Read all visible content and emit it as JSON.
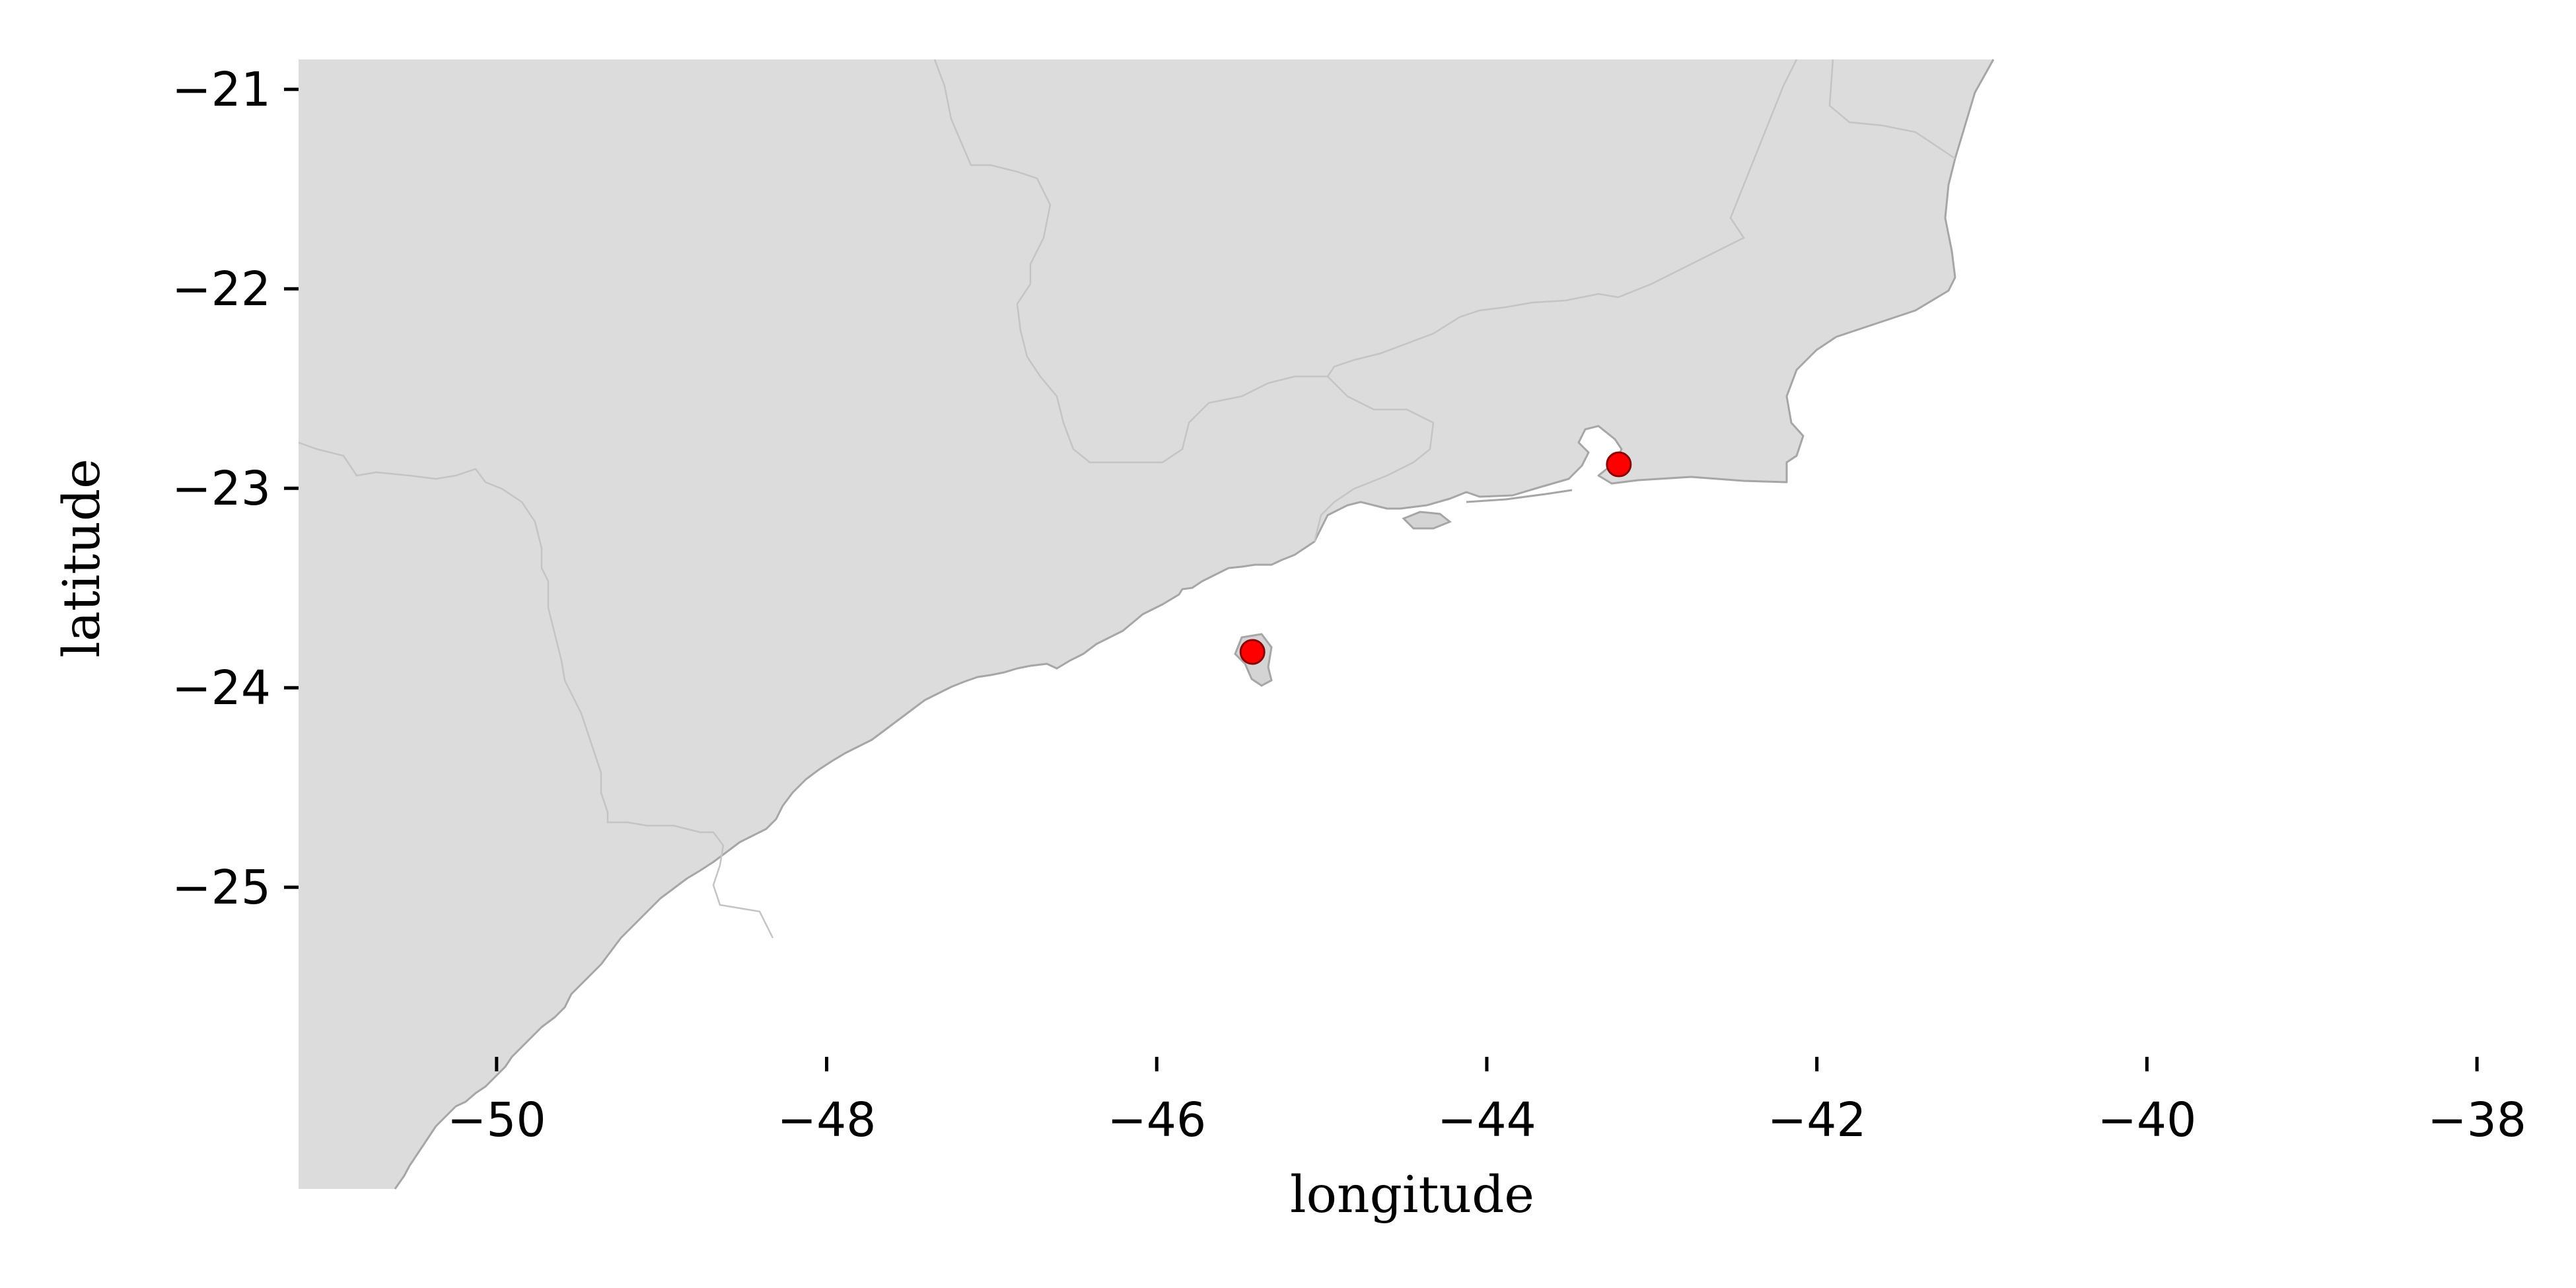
{
  "map": {
    "xlabel": "longitude",
    "ylabel": "latitude",
    "xlim": [
      -51.2,
      -37.5
    ],
    "ylim": [
      -25.85,
      -20.85
    ],
    "xticks": [
      -50,
      -48,
      -46,
      -44,
      -42,
      -40,
      -38
    ],
    "yticks": [
      -21,
      -22,
      -23,
      -24,
      -25
    ],
    "xtick_labels": [
      "−50",
      "−48",
      "−46",
      "−44",
      "−42",
      "−40",
      "−38"
    ],
    "ytick_labels": [
      "−21",
      "−22",
      "−23",
      "−24",
      "−25"
    ],
    "land_color": "#dcdcdc",
    "coast_color": "#a6a6a6",
    "marker_color": "#ff0000",
    "markers": [
      {
        "name": "",
        "lon": -45.42,
        "lat": -23.82
      },
      {
        "name": "",
        "lon": -43.2,
        "lat": -22.88
      }
    ]
  }
}
